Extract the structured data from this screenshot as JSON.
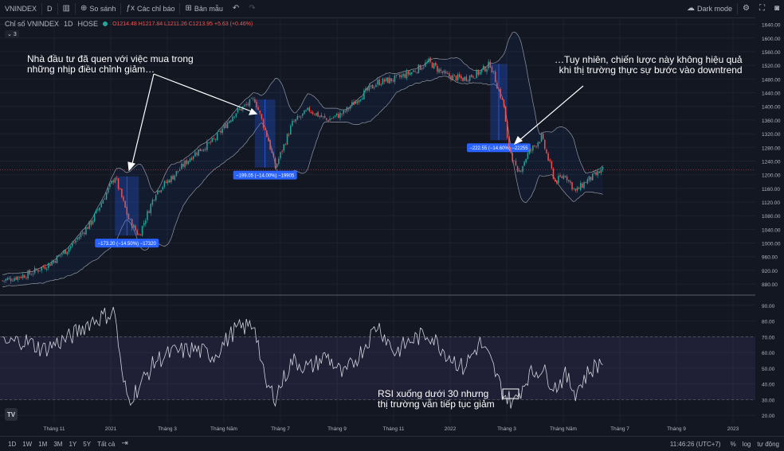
{
  "toolbar": {
    "symbol": "VNINDEX",
    "interval": "D",
    "compare": "So sánh",
    "indicators": "Các chỉ báo",
    "templates": "Bản mẫu",
    "theme": "Dark mode"
  },
  "legend": {
    "name": "Chỉ số VNINDEX",
    "interval": "1D",
    "exchange": "HOSE",
    "ohlc": "O1214.48 H1217.84 L1211.26 C1213.95 +5.63 (+0.46%)",
    "collapse": "3"
  },
  "annotations": {
    "left": [
      "Nhà đầu tư đã quen với việc mua trong",
      "những nhịp điều chỉnh giảm…"
    ],
    "right": [
      "…Tuy nhiên, chiến lược này không hiệu quả",
      "khi thị trường thực sự bước vào downtrend"
    ],
    "rsi": [
      "RSI xuống dưới 30 nhưng",
      "thị trường vẫn tiếp tục giảm"
    ]
  },
  "bottombar": {
    "ranges": [
      "1D",
      "1W",
      "1M",
      "3M",
      "1Y",
      "5Y",
      "Tất cả"
    ],
    "time": "11:46:26 (UTC+7)",
    "pct": "%",
    "log": "log",
    "auto": "tự động"
  },
  "chart_data": {
    "type": "candlestick",
    "price_axis": {
      "ticks": [
        880,
        920,
        960,
        1000,
        1040,
        1080,
        1120,
        1160,
        1200,
        1240,
        1280,
        1320,
        1360,
        1400,
        1440,
        1480,
        1520,
        1560,
        1600,
        1640
      ],
      "range": [
        850,
        1660
      ],
      "current_price": 1213.95
    },
    "rsi_axis": {
      "ticks": [
        20,
        30,
        40,
        50,
        60,
        70,
        80,
        90
      ],
      "range": [
        15,
        95
      ],
      "band": [
        30,
        70
      ]
    },
    "time_axis": [
      "Tháng 11",
      "2021",
      "Tháng 3",
      "Tháng Năm",
      "Tháng 7",
      "Tháng 9",
      "Tháng 11",
      "2022",
      "Tháng 3",
      "Tháng Năm",
      "Tháng 7",
      "Tháng 9",
      "2023"
    ],
    "x_span": [
      0,
      220
    ],
    "measures": [
      {
        "label": "−173.20 (−14.50%) −17320",
        "x0": 33,
        "x1": 40,
        "high": 1195,
        "low": 1022
      },
      {
        "label": "−199.05 (−14.00%) −19905",
        "x0": 74,
        "x1": 80,
        "high": 1420,
        "low": 1221
      },
      {
        "label": "−222.55 (−14.60%) −22255",
        "x0": 143,
        "x1": 148,
        "high": 1524,
        "low": 1301
      }
    ],
    "close_anchors": [
      [
        0,
        890
      ],
      [
        8,
        910
      ],
      [
        14,
        940
      ],
      [
        20,
        990
      ],
      [
        26,
        1060
      ],
      [
        33,
        1195
      ],
      [
        37,
        1070
      ],
      [
        40,
        1022
      ],
      [
        45,
        1150
      ],
      [
        50,
        1195
      ],
      [
        56,
        1260
      ],
      [
        62,
        1300
      ],
      [
        68,
        1380
      ],
      [
        74,
        1420
      ],
      [
        78,
        1300
      ],
      [
        80,
        1221
      ],
      [
        85,
        1350
      ],
      [
        90,
        1390
      ],
      [
        95,
        1360
      ],
      [
        100,
        1380
      ],
      [
        105,
        1430
      ],
      [
        110,
        1470
      ],
      [
        115,
        1480
      ],
      [
        120,
        1500
      ],
      [
        125,
        1530
      ],
      [
        130,
        1490
      ],
      [
        135,
        1480
      ],
      [
        140,
        1500
      ],
      [
        143,
        1524
      ],
      [
        147,
        1400
      ],
      [
        148,
        1301
      ],
      [
        151,
        1200
      ],
      [
        154,
        1260
      ],
      [
        158,
        1310
      ],
      [
        162,
        1180
      ],
      [
        165,
        1200
      ],
      [
        168,
        1150
      ],
      [
        171,
        1180
      ],
      [
        174,
        1200
      ],
      [
        176,
        1214
      ]
    ],
    "rsi_anchors": [
      [
        0,
        65
      ],
      [
        6,
        68
      ],
      [
        12,
        62
      ],
      [
        20,
        70
      ],
      [
        26,
        80
      ],
      [
        33,
        86
      ],
      [
        35,
        45
      ],
      [
        37,
        30
      ],
      [
        40,
        38
      ],
      [
        45,
        55
      ],
      [
        50,
        60
      ],
      [
        56,
        62
      ],
      [
        62,
        58
      ],
      [
        68,
        74
      ],
      [
        74,
        78
      ],
      [
        77,
        40
      ],
      [
        80,
        32
      ],
      [
        85,
        55
      ],
      [
        90,
        50
      ],
      [
        95,
        58
      ],
      [
        100,
        45
      ],
      [
        105,
        60
      ],
      [
        110,
        78
      ],
      [
        115,
        60
      ],
      [
        120,
        68
      ],
      [
        125,
        72
      ],
      [
        130,
        60
      ],
      [
        135,
        50
      ],
      [
        140,
        66
      ],
      [
        143,
        55
      ],
      [
        147,
        33
      ],
      [
        150,
        28
      ],
      [
        154,
        45
      ],
      [
        158,
        50
      ],
      [
        162,
        38
      ],
      [
        165,
        45
      ],
      [
        168,
        35
      ],
      [
        172,
        48
      ],
      [
        176,
        55
      ]
    ]
  }
}
